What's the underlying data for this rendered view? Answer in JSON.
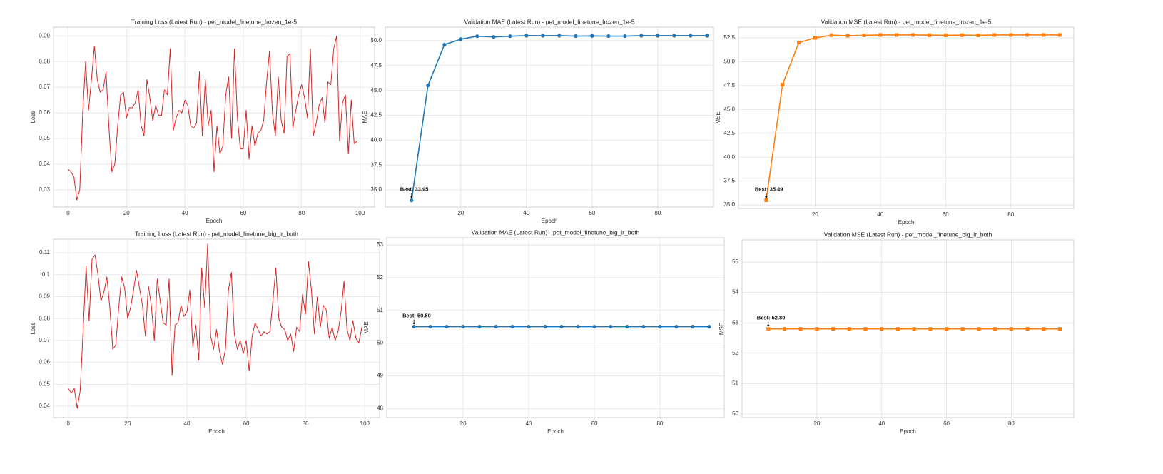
{
  "chart_data": [
    {
      "type": "line",
      "title": "Training Loss (Latest Run) - pet_model_finetune_frozen_1e-5",
      "xlabel": "Epoch",
      "ylabel": "Loss",
      "color": "#d62728",
      "marker": "none",
      "grid": true,
      "x": [
        0,
        1,
        2,
        3,
        4,
        5,
        6,
        7,
        8,
        9,
        10,
        11,
        12,
        13,
        14,
        15,
        16,
        17,
        18,
        19,
        20,
        21,
        22,
        23,
        24,
        25,
        26,
        27,
        28,
        29,
        30,
        31,
        32,
        33,
        34,
        35,
        36,
        37,
        38,
        39,
        40,
        41,
        42,
        43,
        44,
        45,
        46,
        47,
        48,
        49,
        50,
        51,
        52,
        53,
        54,
        55,
        56,
        57,
        58,
        59,
        60,
        61,
        62,
        63,
        64,
        65,
        66,
        67,
        68,
        69,
        70,
        71,
        72,
        73,
        74,
        75,
        76,
        77,
        78,
        79,
        80,
        81,
        82,
        83,
        84,
        85,
        86,
        87,
        88,
        89,
        90,
        91,
        92,
        93,
        94,
        95,
        96,
        97,
        98,
        99
      ],
      "values": [
        0.038,
        0.037,
        0.035,
        0.026,
        0.03,
        0.06,
        0.08,
        0.061,
        0.073,
        0.086,
        0.073,
        0.068,
        0.069,
        0.076,
        0.054,
        0.037,
        0.04,
        0.055,
        0.067,
        0.068,
        0.058,
        0.062,
        0.062,
        0.064,
        0.069,
        0.055,
        0.051,
        0.073,
        0.066,
        0.057,
        0.063,
        0.059,
        0.059,
        0.069,
        0.067,
        0.085,
        0.053,
        0.058,
        0.061,
        0.06,
        0.065,
        0.063,
        0.055,
        0.054,
        0.056,
        0.076,
        0.051,
        0.073,
        0.055,
        0.061,
        0.037,
        0.055,
        0.044,
        0.047,
        0.067,
        0.074,
        0.05,
        0.085,
        0.058,
        0.046,
        0.046,
        0.061,
        0.042,
        0.055,
        0.047,
        0.052,
        0.053,
        0.057,
        0.072,
        0.084,
        0.06,
        0.051,
        0.074,
        0.057,
        0.052,
        0.082,
        0.083,
        0.054,
        0.061,
        0.067,
        0.071,
        0.066,
        0.058,
        0.085,
        0.051,
        0.056,
        0.063,
        0.066,
        0.056,
        0.072,
        0.071,
        0.085,
        0.09,
        0.049,
        0.064,
        0.067,
        0.044,
        0.065,
        0.048,
        0.049
      ],
      "xlim": [
        -5,
        105
      ],
      "xticks": [
        0,
        20,
        40,
        60,
        80,
        100
      ],
      "ylim": [
        0.0233,
        0.0934
      ],
      "yticks": [
        0.03,
        0.04,
        0.05,
        0.06,
        0.07,
        0.08,
        0.09
      ]
    },
    {
      "type": "line",
      "title": "Validation MAE (Latest Run) - pet_model_finetune_frozen_1e-5",
      "xlabel": "Epoch",
      "ylabel": "MAE",
      "color": "#1f77b4",
      "marker": "circle",
      "grid": true,
      "annotation": "Best: 33.95",
      "x": [
        5,
        10,
        15,
        20,
        25,
        30,
        35,
        40,
        45,
        50,
        55,
        60,
        65,
        70,
        75,
        80,
        85,
        90,
        95
      ],
      "values": [
        33.95,
        45.5,
        49.6,
        50.15,
        50.45,
        50.38,
        50.45,
        50.5,
        50.5,
        50.5,
        50.46,
        50.48,
        50.46,
        50.46,
        50.5,
        50.5,
        50.5,
        50.5,
        50.5
      ],
      "xlim": [
        -3,
        97
      ],
      "xticks": [
        20,
        40,
        60,
        80
      ],
      "ylim": [
        33.28,
        51.36
      ],
      "yticks": [
        {
          "value": 35,
          "label": "35.0"
        },
        {
          "value": 37.5,
          "label": "37.5"
        },
        {
          "value": 40,
          "label": "40.0"
        },
        {
          "value": 42.5,
          "label": "42.5"
        },
        {
          "value": 45,
          "label": "45.0"
        },
        {
          "value": 47.5,
          "label": "47.5"
        },
        {
          "value": 50,
          "label": "50.0"
        }
      ]
    },
    {
      "type": "line",
      "title": "Validation MSE (Latest Run) - pet_model_finetune_frozen_1e-5",
      "xlabel": "Epoch",
      "ylabel": "MSE",
      "color": "#ff7f0e",
      "marker": "square",
      "grid": true,
      "annotation": "Best: 35.49",
      "x": [
        5,
        10,
        15,
        20,
        25,
        30,
        35,
        40,
        45,
        50,
        55,
        60,
        65,
        70,
        75,
        80,
        85,
        90,
        95
      ],
      "values": [
        35.49,
        47.6,
        52.0,
        52.5,
        52.78,
        52.72,
        52.77,
        52.8,
        52.8,
        52.8,
        52.78,
        52.77,
        52.78,
        52.77,
        52.8,
        52.8,
        52.8,
        52.8,
        52.8
      ],
      "xlim": [
        -3.5,
        99.3
      ],
      "xticks": [
        20,
        40,
        60,
        80
      ],
      "ylim": [
        34.63,
        53.62
      ],
      "yticks": [
        {
          "value": 35,
          "label": "35.0"
        },
        {
          "value": 37.5,
          "label": "37.5"
        },
        {
          "value": 40,
          "label": "40.0"
        },
        {
          "value": 42.5,
          "label": "42.5"
        },
        {
          "value": 45,
          "label": "45.0"
        },
        {
          "value": 47.5,
          "label": "47.5"
        },
        {
          "value": 50,
          "label": "50.0"
        },
        {
          "value": 52.5,
          "label": "52.5"
        }
      ]
    },
    {
      "type": "line",
      "title": "Training Loss (Latest Run) - pet_model_finetune_big_lr_both",
      "xlabel": "Epoch",
      "ylabel": "Loss",
      "color": "#d62728",
      "marker": "none",
      "grid": true,
      "x": [
        0,
        1,
        2,
        3,
        4,
        5,
        6,
        7,
        8,
        9,
        10,
        11,
        12,
        13,
        14,
        15,
        16,
        17,
        18,
        19,
        20,
        21,
        22,
        23,
        24,
        25,
        26,
        27,
        28,
        29,
        30,
        31,
        32,
        33,
        34,
        35,
        36,
        37,
        38,
        39,
        40,
        41,
        42,
        43,
        44,
        45,
        46,
        47,
        48,
        49,
        50,
        51,
        52,
        53,
        54,
        55,
        56,
        57,
        58,
        59,
        60,
        61,
        62,
        63,
        64,
        65,
        66,
        67,
        68,
        69,
        70,
        71,
        72,
        73,
        74,
        75,
        76,
        77,
        78,
        79,
        80,
        81,
        82,
        83,
        84,
        85,
        86,
        87,
        88,
        89,
        90,
        91,
        92,
        93,
        94,
        95,
        96,
        97,
        98,
        99
      ],
      "values": [
        0.048,
        0.046,
        0.048,
        0.039,
        0.047,
        0.075,
        0.104,
        0.079,
        0.107,
        0.109,
        0.1,
        0.088,
        0.092,
        0.099,
        0.085,
        0.066,
        0.068,
        0.085,
        0.099,
        0.094,
        0.08,
        0.085,
        0.093,
        0.102,
        0.094,
        0.086,
        0.072,
        0.095,
        0.086,
        0.07,
        0.098,
        0.088,
        0.078,
        0.077,
        0.098,
        0.054,
        0.077,
        0.078,
        0.086,
        0.081,
        0.083,
        0.093,
        0.067,
        0.077,
        0.061,
        0.103,
        0.085,
        0.114,
        0.072,
        0.066,
        0.075,
        0.065,
        0.059,
        0.066,
        0.093,
        0.101,
        0.073,
        0.066,
        0.07,
        0.064,
        0.07,
        0.056,
        0.072,
        0.078,
        0.075,
        0.072,
        0.074,
        0.073,
        0.074,
        0.088,
        0.103,
        0.08,
        0.076,
        0.075,
        0.07,
        0.073,
        0.065,
        0.076,
        0.074,
        0.091,
        0.082,
        0.106,
        0.093,
        0.073,
        0.09,
        0.076,
        0.086,
        0.084,
        0.071,
        0.076,
        0.07,
        0.074,
        0.083,
        0.097,
        0.075,
        0.07,
        0.079,
        0.071,
        0.069,
        0.076
      ],
      "xlim": [
        -5,
        105
      ],
      "xticks": [
        0,
        20,
        40,
        60,
        80,
        100
      ],
      "ylim": [
        0.0348,
        0.1162
      ],
      "yticks": [
        0.04,
        0.05,
        0.06,
        0.07,
        0.08,
        0.09,
        0.1,
        0.11
      ]
    },
    {
      "type": "line",
      "title": "Validation MAE (Latest Run) - pet_model_finetune_big_lr_both",
      "xlabel": "Epoch",
      "ylabel": "MAE",
      "color": "#1f77b4",
      "marker": "circle",
      "grid": true,
      "annotation": "Best: 50.50",
      "x": [
        5,
        10,
        15,
        20,
        25,
        30,
        35,
        40,
        45,
        50,
        55,
        60,
        65,
        70,
        75,
        80,
        85,
        90,
        95
      ],
      "values": [
        50.5,
        50.5,
        50.5,
        50.5,
        50.5,
        50.5,
        50.5,
        50.5,
        50.5,
        50.5,
        50.5,
        50.5,
        50.5,
        50.5,
        50.5,
        50.5,
        50.5,
        50.5,
        50.5
      ],
      "xlim": [
        -3.3,
        99.6
      ],
      "xticks": [
        20,
        40,
        60,
        80
      ],
      "ylim": [
        47.72,
        53.22
      ],
      "yticks": [
        48,
        49,
        50,
        51,
        52,
        53
      ]
    },
    {
      "type": "line",
      "title": "Validation MSE (Latest Run) - pet_model_finetune_big_lr_both",
      "xlabel": "Epoch",
      "ylabel": "MSE",
      "color": "#ff7f0e",
      "marker": "square",
      "grid": true,
      "annotation": "Best: 52.80",
      "x": [
        5,
        10,
        15,
        20,
        25,
        30,
        35,
        40,
        45,
        50,
        55,
        60,
        65,
        70,
        75,
        80,
        85,
        90,
        95
      ],
      "values": [
        52.8,
        52.8,
        52.8,
        52.8,
        52.8,
        52.8,
        52.8,
        52.8,
        52.8,
        52.8,
        52.8,
        52.8,
        52.8,
        52.8,
        52.8,
        52.8,
        52.8,
        52.8,
        52.8
      ],
      "xlim": [
        -3.1,
        99.3
      ],
      "xticks": [
        20,
        40,
        60,
        80
      ],
      "ylim": [
        49.88,
        55.73
      ],
      "yticks": [
        50,
        51,
        52,
        53,
        54,
        55
      ]
    }
  ]
}
